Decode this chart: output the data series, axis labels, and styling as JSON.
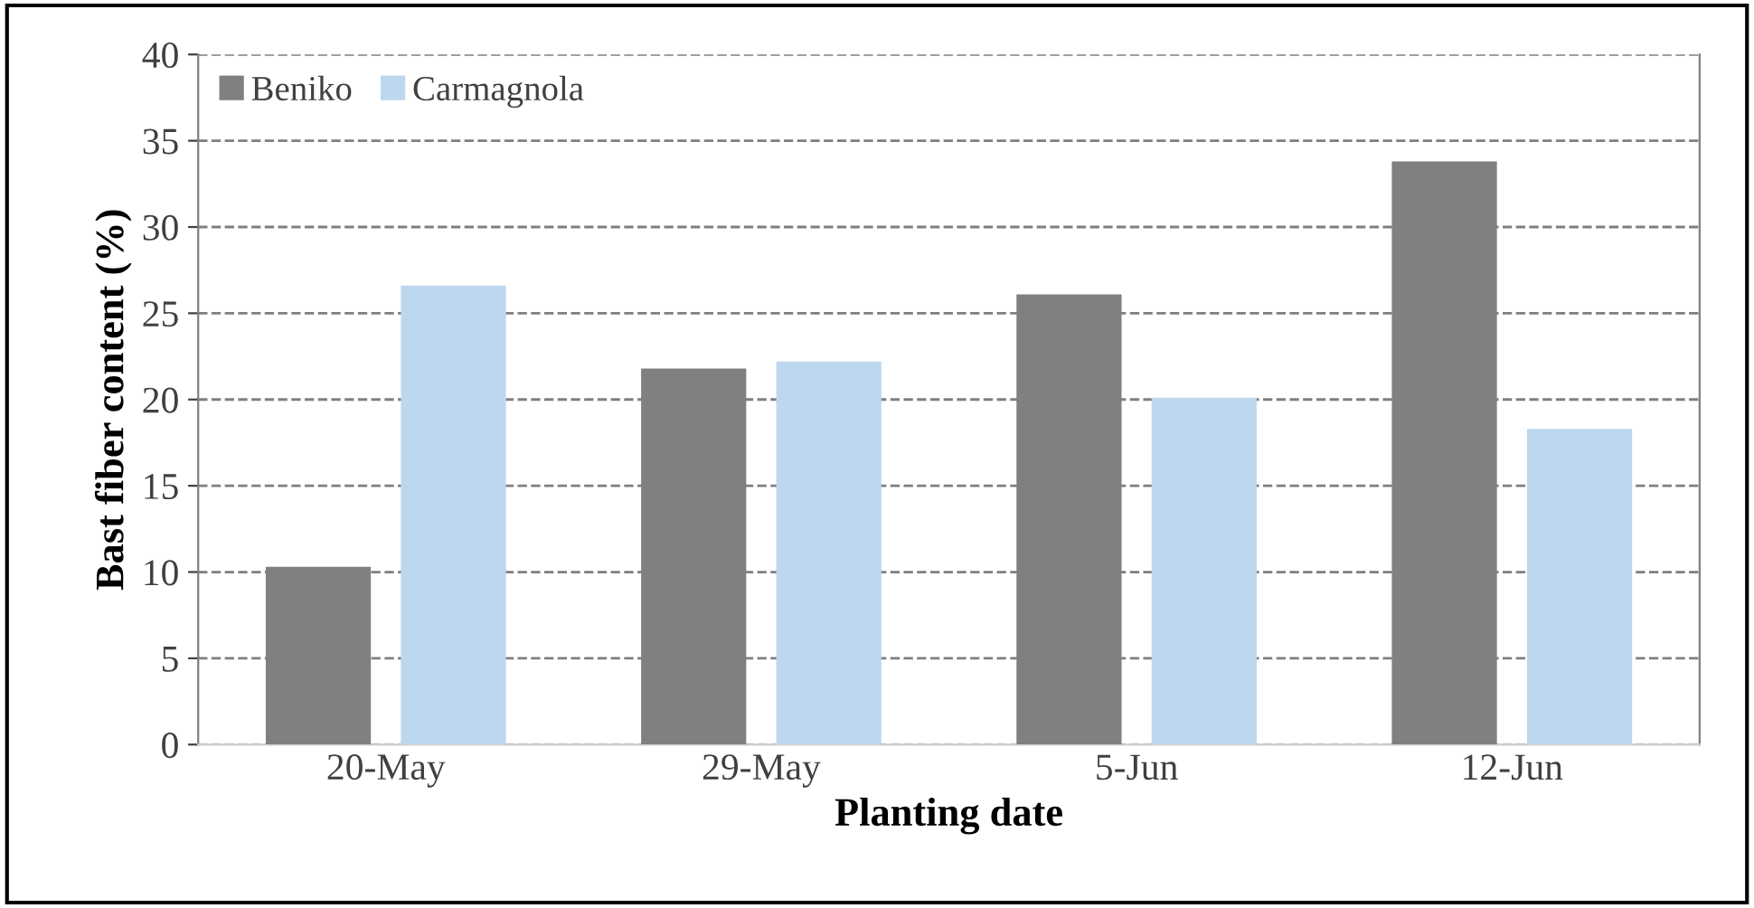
{
  "chart_data": {
    "type": "bar",
    "xlabel": "Planting date",
    "ylabel": "Bast fiber content (%)",
    "categories": [
      "20-May",
      "29-May",
      "5-Jun",
      "12-Jun"
    ],
    "series": [
      {
        "name": "Beniko",
        "color": "#808080",
        "values": [
          10.3,
          21.8,
          26.1,
          33.8
        ]
      },
      {
        "name": "Carmagnola",
        "color": "#bdd7ee",
        "values": [
          26.6,
          22.2,
          20.1,
          18.3
        ]
      }
    ],
    "ylim": [
      0,
      40
    ],
    "yticks": [
      0,
      5,
      10,
      15,
      20,
      25,
      30,
      35,
      40
    ],
    "grid": "y",
    "legend": "top left"
  }
}
